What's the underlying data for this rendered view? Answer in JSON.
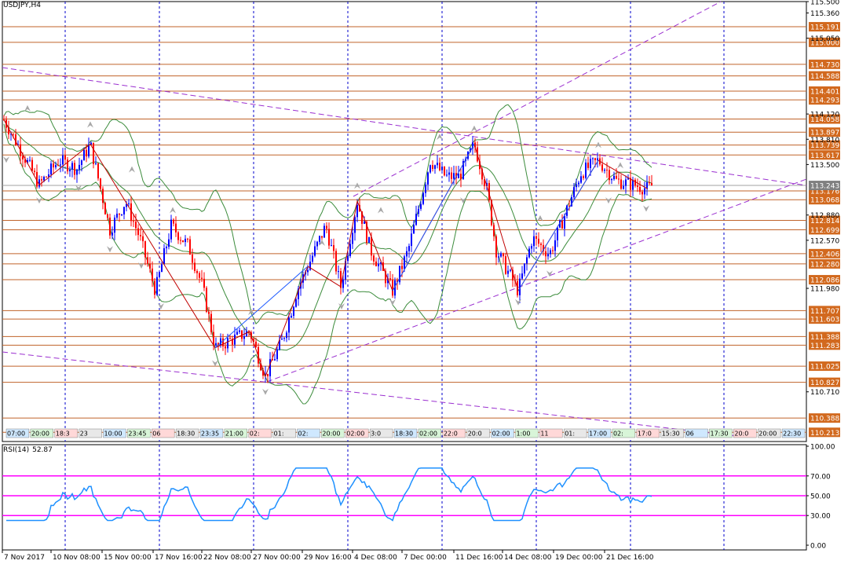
{
  "header": {
    "symbol_timeframe": "USDJPY,H4"
  },
  "indicator": {
    "name": "RSI(14)",
    "value": "52.87"
  },
  "price_axis": {
    "plain_labels": [
      "115.500",
      "115.360",
      "115.050",
      "114.120",
      "113.810",
      "113.500",
      "112.880",
      "112.570",
      "111.980",
      "110.710"
    ],
    "boxed_labels": [
      "115.191",
      "115.000",
      "114.730",
      "114.588",
      "114.401",
      "114.293",
      "114.058",
      "113.897",
      "113.739",
      "113.617",
      "113.176",
      "113.068",
      "112.814",
      "112.699",
      "112.406",
      "112.280",
      "112.086",
      "111.707",
      "111.603",
      "111.388",
      "111.283",
      "111.025",
      "110.827",
      "110.388",
      "110.213"
    ],
    "current_price": "113.243"
  },
  "rsi_axis": {
    "labels": [
      "100.00",
      "70.00",
      "50.00",
      "30.00",
      "0.00"
    ]
  },
  "date_axis": [
    "7 Nov 2017",
    "10 Nov 08:00",
    "15 Nov 00:00",
    "17 Nov 16:00",
    "22 Nov 08:00",
    "27 Nov 00:00",
    "29 Nov 16:00",
    "4 Dec 08:00",
    "7 Dec 00:00",
    "11 Dec 16:00",
    "14 Dec 08:00",
    "19 Dec 00:00",
    "21 Dec 16:00"
  ],
  "session_labels": [
    "07:00",
    "20:00",
    "18:3",
    "23",
    "10:00",
    "23:45",
    "06",
    "18:30",
    "23:35",
    "21:00",
    "02:",
    "01:",
    "02:",
    "20:00",
    "02:00",
    "3:0",
    "18:30",
    "02:00",
    "22:0",
    "20:0",
    "02:00",
    "1:00",
    "11",
    "01:",
    "17:00",
    "02:",
    "17:0",
    "15:30",
    "06",
    "17:30",
    "20:0",
    "20:00",
    "22:30"
  ],
  "colors": {
    "bull_candle": "#0000ff",
    "bear_candle": "#ff0000",
    "level_line": "#c0632a",
    "level_box": "#d2691e",
    "grid": "#0000cd",
    "trend_line": "#9b30d0",
    "bollinger": "#3c8c3c",
    "rsi_line": "#1e90ff",
    "rsi_level": "#ff00ff"
  }
}
